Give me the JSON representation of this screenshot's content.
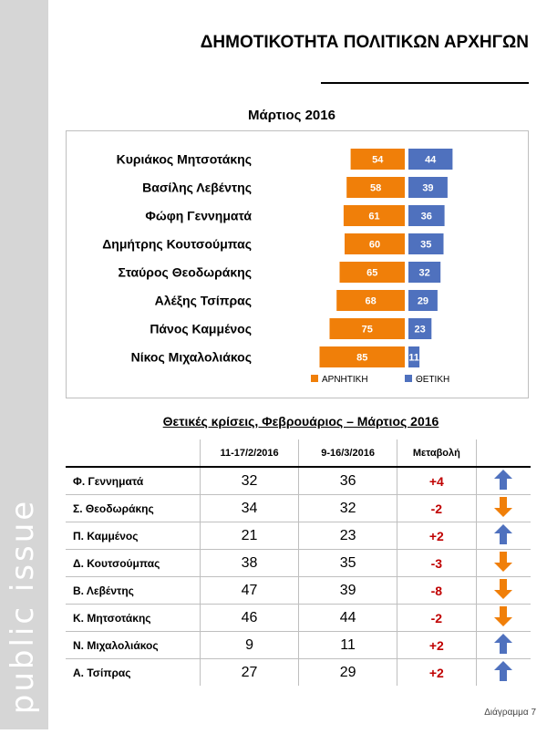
{
  "brand": "public issue",
  "page_title": "ΔΗΜΟΤΙΚΟΤΗΤΑ ΠΟΛΙΤΙΚΩΝ ΑΡΧΗΓΩΝ",
  "chart_title": "Μάρτιος 2016",
  "chart_data": {
    "type": "bar",
    "categories": [
      "Κυριάκος Μητσοτάκης",
      "Βασίλης Λεβέντης",
      "Φώφη Γεννηματά",
      "Δημήτρης Κουτσούμπας",
      "Σταύρος Θεοδωράκης",
      "Αλέξης Τσίπρας",
      "Πάνος Καμμένος",
      "Νίκος Μιχαλολιάκος"
    ],
    "series": [
      {
        "name": "ΑΡΝΗΤΙΚΗ",
        "values": [
          54,
          58,
          61,
          60,
          65,
          68,
          75,
          85
        ],
        "color": "#f07f09"
      },
      {
        "name": "ΘΕΤΙΚΗ",
        "values": [
          44,
          39,
          36,
          35,
          32,
          29,
          23,
          11
        ],
        "color": "#4f71be"
      }
    ],
    "orientation": "horizontal-diverging",
    "legend": "bottom"
  },
  "table": {
    "title": "Θετικές κρίσεις, Φεβρουάριος – Μάρτιος 2016",
    "headers": [
      "11-17/2/2016",
      "9-16/3/2016",
      "Μεταβολή"
    ],
    "rows": [
      {
        "name": "Φ. Γεννηματά",
        "feb": "32",
        "mar": "36",
        "change": "+4",
        "arrow": "up-arrow-icon"
      },
      {
        "name": "Σ. Θεοδωράκης",
        "feb": "34",
        "mar": "32",
        "change": "-2",
        "arrow": "down-arrow-icon"
      },
      {
        "name": "Π. Καμμένος",
        "feb": "21",
        "mar": "23",
        "change": "+2",
        "arrow": "up-arrow-icon"
      },
      {
        "name": "Δ. Κουτσούμπας",
        "feb": "38",
        "mar": "35",
        "change": "-3",
        "arrow": "down-arrow-icon"
      },
      {
        "name": "Β. Λεβέντης",
        "feb": "47",
        "mar": "39",
        "change": "-8",
        "arrow": "down-arrow-icon"
      },
      {
        "name": "Κ. Μητσοτάκης",
        "feb": "46",
        "mar": "44",
        "change": "-2",
        "arrow": "down-arrow-icon"
      },
      {
        "name": "Ν. Μιχαλολιάκος",
        "feb": "9",
        "mar": "11",
        "change": "+2",
        "arrow": "up-arrow-icon"
      },
      {
        "name": "Α. Τσίπρας",
        "feb": "27",
        "mar": "29",
        "change": "+2",
        "arrow": "up-arrow-icon"
      }
    ]
  },
  "colors": {
    "up_arrow": "#4f71be",
    "down_arrow": "#f07f09",
    "change_text": "#c00000"
  },
  "footnote": "Διάγραμμα 7"
}
